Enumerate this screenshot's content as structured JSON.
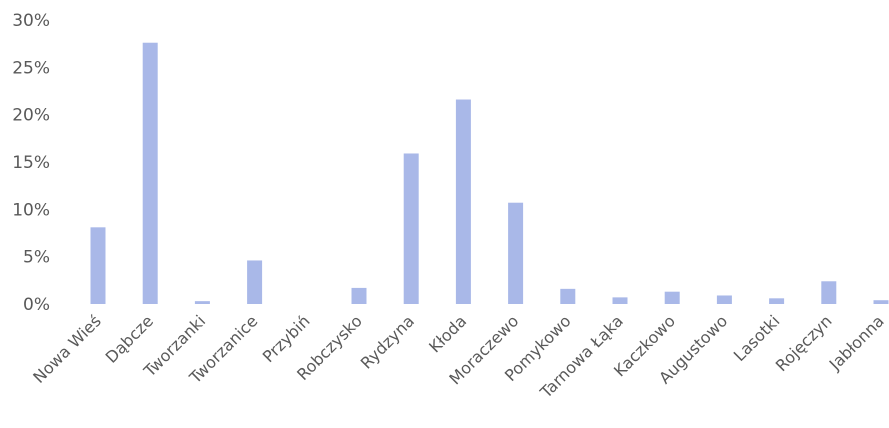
{
  "chart_data": {
    "type": "bar",
    "title": "",
    "xlabel": "",
    "ylabel": "",
    "categories": [
      "Nowa Wieś",
      "Dąbcze",
      "Tworzanki",
      "Tworzanice",
      "Przybiń",
      "Robczysko",
      "Rydzyna",
      "Kłoda",
      "Moraczewo",
      "Pomykowo",
      "Tarnowa Łąka",
      "Kaczkowo",
      "Augustowo",
      "Lasotki",
      "Rojęczyn",
      "Jabłonna"
    ],
    "series": [
      {
        "values": [
          8.1,
          27.6,
          0.3,
          4.6,
          0.0,
          1.7,
          15.9,
          21.6,
          10.7,
          1.6,
          0.7,
          1.3,
          0.9,
          0.6,
          2.4,
          0.4
        ]
      }
    ],
    "ylim": [
      0,
      30
    ],
    "yticks": [
      0,
      5,
      10,
      15,
      20,
      25,
      30
    ],
    "ytick_labels": [
      "0%",
      "5%",
      "10%",
      "15%",
      "20%",
      "25%",
      "30%"
    ],
    "bar_color": "#a9b8e8",
    "grid": false,
    "legend": "none"
  }
}
